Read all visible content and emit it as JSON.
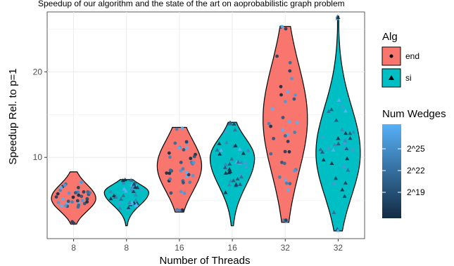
{
  "chart_data": {
    "type": "violin",
    "title": "Speedup of our algorithm and the state of the art on aoprobabilistic graph problem",
    "xlabel": "Number of Threads",
    "ylabel": "Speedup Rel. to p=1",
    "ylim": [
      0.5,
      27
    ],
    "yticks": [
      10,
      20
    ],
    "grid": true,
    "groups": [
      {
        "label": "8",
        "alg": "end",
        "min": 2.2,
        "max": 8.3,
        "q1": 4.1,
        "q3": 6.4,
        "median": 5.2
      },
      {
        "label": "8",
        "alg": "si",
        "min": 2.0,
        "max": 7.4,
        "q1": 4.8,
        "q3": 6.6,
        "median": 5.9
      },
      {
        "label": "16",
        "alg": "end",
        "min": 3.6,
        "max": 13.5,
        "q1": 6.8,
        "q3": 11.2,
        "median": 9.0
      },
      {
        "label": "16",
        "alg": "si",
        "min": 2.0,
        "max": 14.1,
        "q1": 7.5,
        "q3": 11.6,
        "median": 9.9
      },
      {
        "label": "32",
        "alg": "end",
        "min": 2.4,
        "max": 25.3,
        "q1": 9.8,
        "q3": 19.2,
        "median": 14.5
      },
      {
        "label": "32",
        "alg": "si",
        "min": 1.4,
        "max": 26.5,
        "q1": 6.8,
        "q3": 14.5,
        "median": 10.5
      }
    ],
    "legend": {
      "alg_title": "Alg",
      "alg_items": [
        {
          "name": "end",
          "color": "#f8766d",
          "marker": "circle"
        },
        {
          "name": "si",
          "color": "#00bfc4",
          "marker": "triangle"
        }
      ],
      "gradient_title": "Num Wedges",
      "gradient_labels": [
        "2^25",
        "2^22",
        "2^19"
      ],
      "gradient_low": "#132b43",
      "gradient_high": "#56b1f7"
    },
    "placement": "right"
  }
}
